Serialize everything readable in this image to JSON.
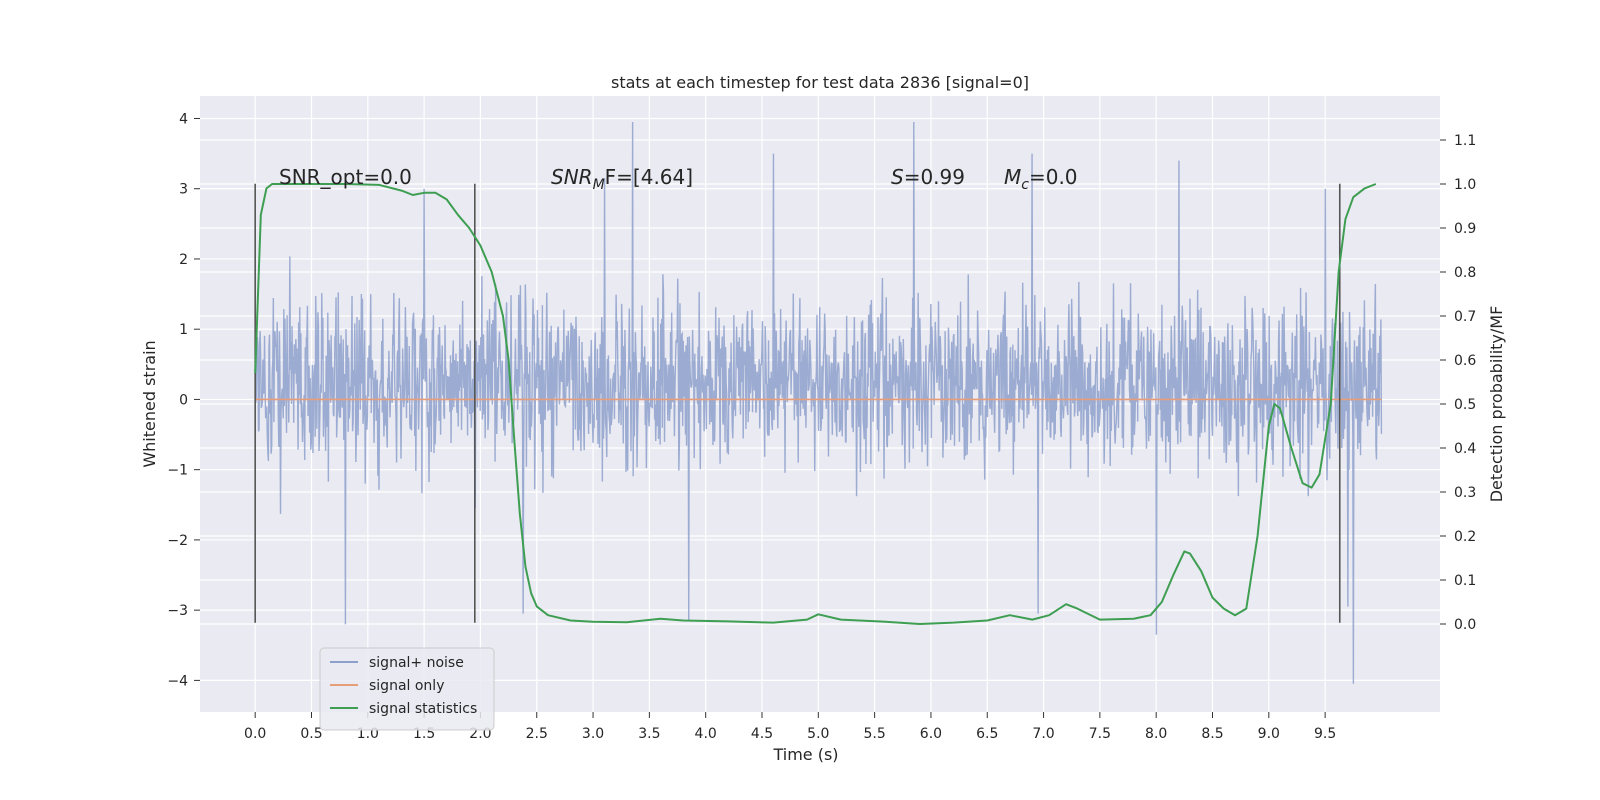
{
  "chart_data": {
    "type": "line",
    "title": "stats at each timestep for test data 2836 [signal=0]",
    "xlabel": "Time (s)",
    "ylabel": "Whitened strain",
    "ylabel_right": "Detection probability/MF",
    "xlim": [
      -0.49,
      10.52
    ],
    "ylim": [
      -4.45,
      4.32
    ],
    "ylim_right": [
      -0.2,
      1.2
    ],
    "x_ticks": [
      "0.0",
      "0.5",
      "1.0",
      "1.5",
      "2.0",
      "2.5",
      "3.0",
      "3.5",
      "4.0",
      "4.5",
      "5.0",
      "5.5",
      "6.0",
      "6.5",
      "7.0",
      "7.5",
      "8.0",
      "8.5",
      "9.0",
      "9.5"
    ],
    "y_ticks": [
      "4",
      "3",
      "2",
      "1",
      "0",
      "−1",
      "−2",
      "−3",
      "−4"
    ],
    "y_ticks_right": [
      "1.1",
      "1.0",
      "0.9",
      "0.8",
      "0.7",
      "0.6",
      "0.5",
      "0.4",
      "0.3",
      "0.2",
      "0.1",
      "0.0"
    ],
    "grid": true,
    "legend_position": "lower-left",
    "annotations": {
      "snr_opt": "SNR_opt=0.0",
      "snr_mf_pre": "SNR",
      "snr_mf_sub": "M",
      "snr_mf_post": "F=[4.64]",
      "s_var": "S",
      "s_val": "=0.99",
      "mc_var": "M",
      "mc_sub": "c",
      "mc_val": "=0.0"
    },
    "vertical_markers": [
      0.0,
      1.95,
      9.63
    ],
    "vertical_marker_range": [
      -3.18,
      3.07
    ],
    "series": [
      {
        "name": "signal+ noise",
        "color": "#8da0cb",
        "x_range": [
          0.0,
          10.0
        ],
        "n_points": 2048,
        "envelope_typical": [
          -1.3,
          1.8
        ],
        "peaks": [
          [
            3.35,
            3.95
          ],
          [
            5.85,
            3.95
          ],
          [
            4.6,
            3.5
          ],
          [
            6.9,
            3.5
          ],
          [
            8.2,
            3.4
          ],
          [
            3.1,
            3.15
          ],
          [
            1.5,
            3.0
          ],
          [
            9.5,
            3.0
          ],
          [
            9.75,
            -4.05
          ],
          [
            2.38,
            -3.05
          ],
          [
            8.0,
            -3.35
          ],
          [
            0.8,
            -3.2
          ],
          [
            3.85,
            -3.15
          ],
          [
            6.95,
            -3.05
          ],
          [
            9.7,
            -2.95
          ]
        ]
      },
      {
        "name": "signal only",
        "color": "#e79d7a",
        "x_range": [
          0.0,
          10.0
        ],
        "values_constant": 0.0
      },
      {
        "name": "signal statistics",
        "color": "#3e9e52",
        "axis": "right",
        "x": [
          0.0,
          0.05,
          0.1,
          0.15,
          0.2,
          0.3,
          0.5,
          0.8,
          1.1,
          1.3,
          1.4,
          1.5,
          1.6,
          1.7,
          1.8,
          1.9,
          2.0,
          2.1,
          2.2,
          2.25,
          2.3,
          2.35,
          2.4,
          2.45,
          2.5,
          2.6,
          2.8,
          3.0,
          3.3,
          3.6,
          3.8,
          4.2,
          4.6,
          4.9,
          5.0,
          5.2,
          5.6,
          5.9,
          6.2,
          6.5,
          6.7,
          6.9,
          7.05,
          7.2,
          7.3,
          7.5,
          7.8,
          7.95,
          8.05,
          8.15,
          8.25,
          8.3,
          8.4,
          8.5,
          8.6,
          8.7,
          8.8,
          8.9,
          9.0,
          9.05,
          9.1,
          9.2,
          9.3,
          9.38,
          9.45,
          9.55,
          9.62,
          9.68,
          9.75,
          9.85,
          9.95
        ],
        "y": [
          0.57,
          0.93,
          0.99,
          1.0,
          1.0,
          1.0,
          1.0,
          1.0,
          0.998,
          0.985,
          0.975,
          0.98,
          0.98,
          0.965,
          0.93,
          0.9,
          0.86,
          0.8,
          0.7,
          0.6,
          0.42,
          0.25,
          0.13,
          0.07,
          0.04,
          0.02,
          0.008,
          0.005,
          0.004,
          0.012,
          0.008,
          0.006,
          0.003,
          0.01,
          0.022,
          0.01,
          0.005,
          0.0,
          0.003,
          0.008,
          0.02,
          0.01,
          0.02,
          0.045,
          0.035,
          0.01,
          0.012,
          0.02,
          0.05,
          0.11,
          0.165,
          0.16,
          0.12,
          0.06,
          0.035,
          0.02,
          0.035,
          0.2,
          0.45,
          0.5,
          0.49,
          0.4,
          0.32,
          0.31,
          0.34,
          0.5,
          0.8,
          0.92,
          0.97,
          0.99,
          1.0
        ]
      }
    ]
  }
}
